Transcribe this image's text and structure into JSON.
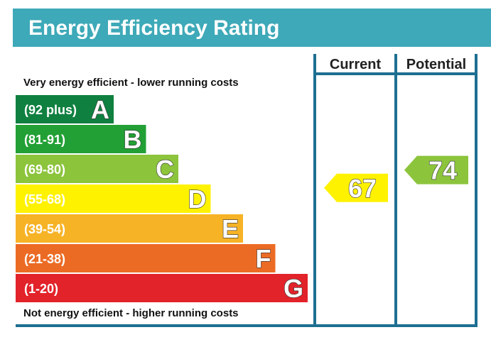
{
  "title": "Energy Efficiency Rating",
  "columns": {
    "current": "Current",
    "potential": "Potential"
  },
  "top_note": "Very energy efficient - lower running costs",
  "bottom_note": "Not energy efficient - higher running costs",
  "colors": {
    "header": "#3ea9b8",
    "frame": "#1d6f91"
  },
  "chart_data": {
    "type": "bar",
    "title": "Energy Efficiency Rating",
    "bands": [
      {
        "letter": "A",
        "range": "(92 plus)",
        "min": 92,
        "max": 100,
        "color": "#0f8040"
      },
      {
        "letter": "B",
        "range": "(81-91)",
        "min": 81,
        "max": 91,
        "color": "#22a035"
      },
      {
        "letter": "C",
        "range": "(69-80)",
        "min": 69,
        "max": 80,
        "color": "#8cc43c"
      },
      {
        "letter": "D",
        "range": "(55-68)",
        "min": 55,
        "max": 68,
        "color": "#fff200"
      },
      {
        "letter": "E",
        "range": "(39-54)",
        "min": 39,
        "max": 54,
        "color": "#f7b326"
      },
      {
        "letter": "F",
        "range": "(21-38)",
        "min": 21,
        "max": 38,
        "color": "#ec6b24"
      },
      {
        "letter": "G",
        "range": "(1-20)",
        "min": 1,
        "max": 20,
        "color": "#e2232a"
      }
    ],
    "current": {
      "value": 67,
      "band": "D",
      "color": "#fff200"
    },
    "potential": {
      "value": 74,
      "band": "C",
      "color": "#8cc43c"
    }
  }
}
